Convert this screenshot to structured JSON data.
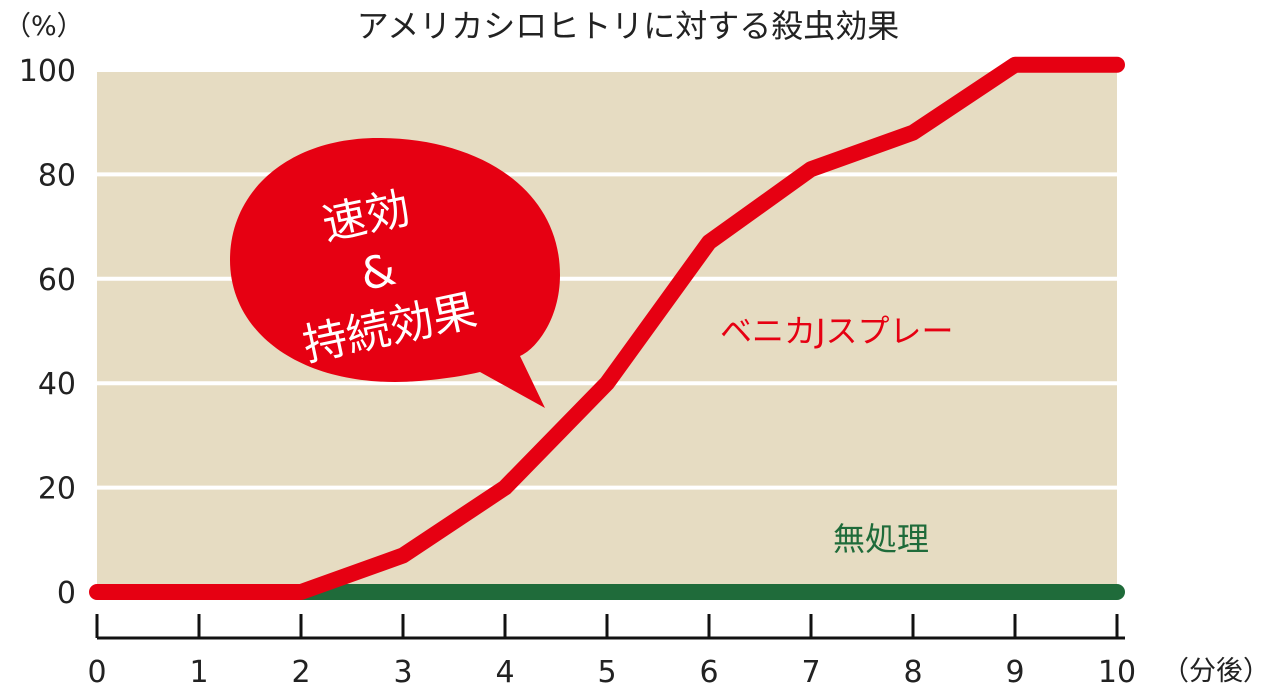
{
  "chart_data": {
    "type": "line",
    "title": "アメリカシロヒトリに対する殺虫効果",
    "y_unit": "（%）",
    "x_unit": "（分後）",
    "x": [
      0,
      1,
      2,
      3,
      4,
      5,
      6,
      7,
      8,
      9,
      10
    ],
    "xlim": [
      0,
      10
    ],
    "ylim": [
      0,
      100
    ],
    "yticks": [
      0,
      20,
      40,
      60,
      80,
      100
    ],
    "xticks": [
      0,
      1,
      2,
      3,
      4,
      5,
      6,
      7,
      8,
      9,
      10
    ],
    "grid": true,
    "plot_background": "#e6dcc2",
    "series": [
      {
        "name": "ベニカJスプレー",
        "color": "#e60012",
        "values": [
          0,
          0,
          0,
          7,
          20,
          40,
          67,
          81,
          88,
          101,
          101
        ]
      },
      {
        "name": "無処理",
        "color": "#1f6b3a",
        "values": [
          null,
          null,
          0,
          0,
          0,
          0,
          0,
          0,
          0,
          0,
          0
        ]
      }
    ],
    "callout": {
      "lines": [
        "速効",
        "&",
        "持続効果"
      ],
      "color": "#e60012"
    }
  }
}
